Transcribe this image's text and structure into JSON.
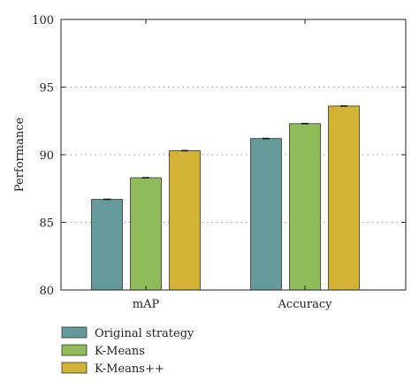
{
  "chart_data": {
    "type": "bar",
    "title": "",
    "xlabel": "",
    "ylabel": "Performance",
    "ylim": [
      80,
      100
    ],
    "yticks": [
      80,
      85,
      90,
      95,
      100
    ],
    "categories": [
      "mAP",
      "Accuracy"
    ],
    "series": [
      {
        "name": "Original strategy",
        "values": [
          86.7,
          91.2
        ],
        "color": "#66999a"
      },
      {
        "name": "K-Means",
        "values": [
          88.3,
          92.3
        ],
        "color": "#90bb5a"
      },
      {
        "name": "K-Means++",
        "values": [
          90.3,
          93.6
        ],
        "color": "#d2b336"
      }
    ],
    "grid": "horizontal dotted",
    "legend_position": "bottom-left"
  }
}
